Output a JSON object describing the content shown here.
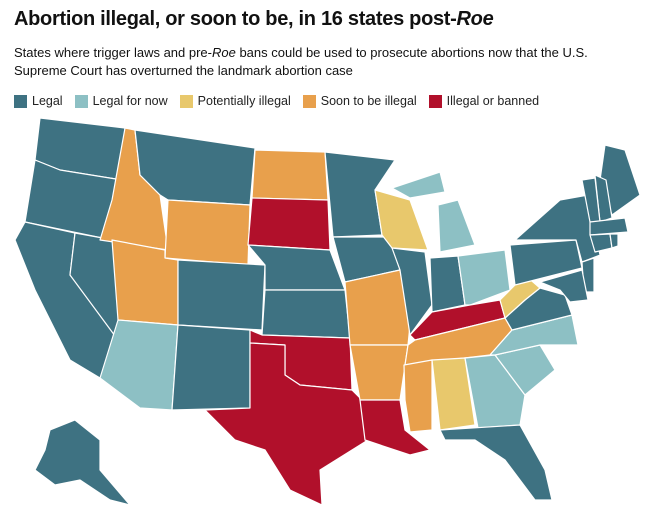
{
  "title": {
    "text": "Abortion illegal, or soon to be, in 16 states post-",
    "italic": "Roe"
  },
  "subtitle": {
    "before": "States where trigger laws and pre-",
    "italic": "Roe",
    "after": " bans could be used to prosecute abortions now that the U.S. Supreme Court has overturned the landmark abortion case"
  },
  "legend": [
    {
      "label": "Legal",
      "color": "#3e7282"
    },
    {
      "label": "Legal for now",
      "color": "#8dc0c4"
    },
    {
      "label": "Potentially illegal",
      "color": "#e8c86c"
    },
    {
      "label": "Soon to be illegal",
      "color": "#e8a04c"
    },
    {
      "label": "Illegal or banned",
      "color": "#b1102b"
    }
  ]
}
